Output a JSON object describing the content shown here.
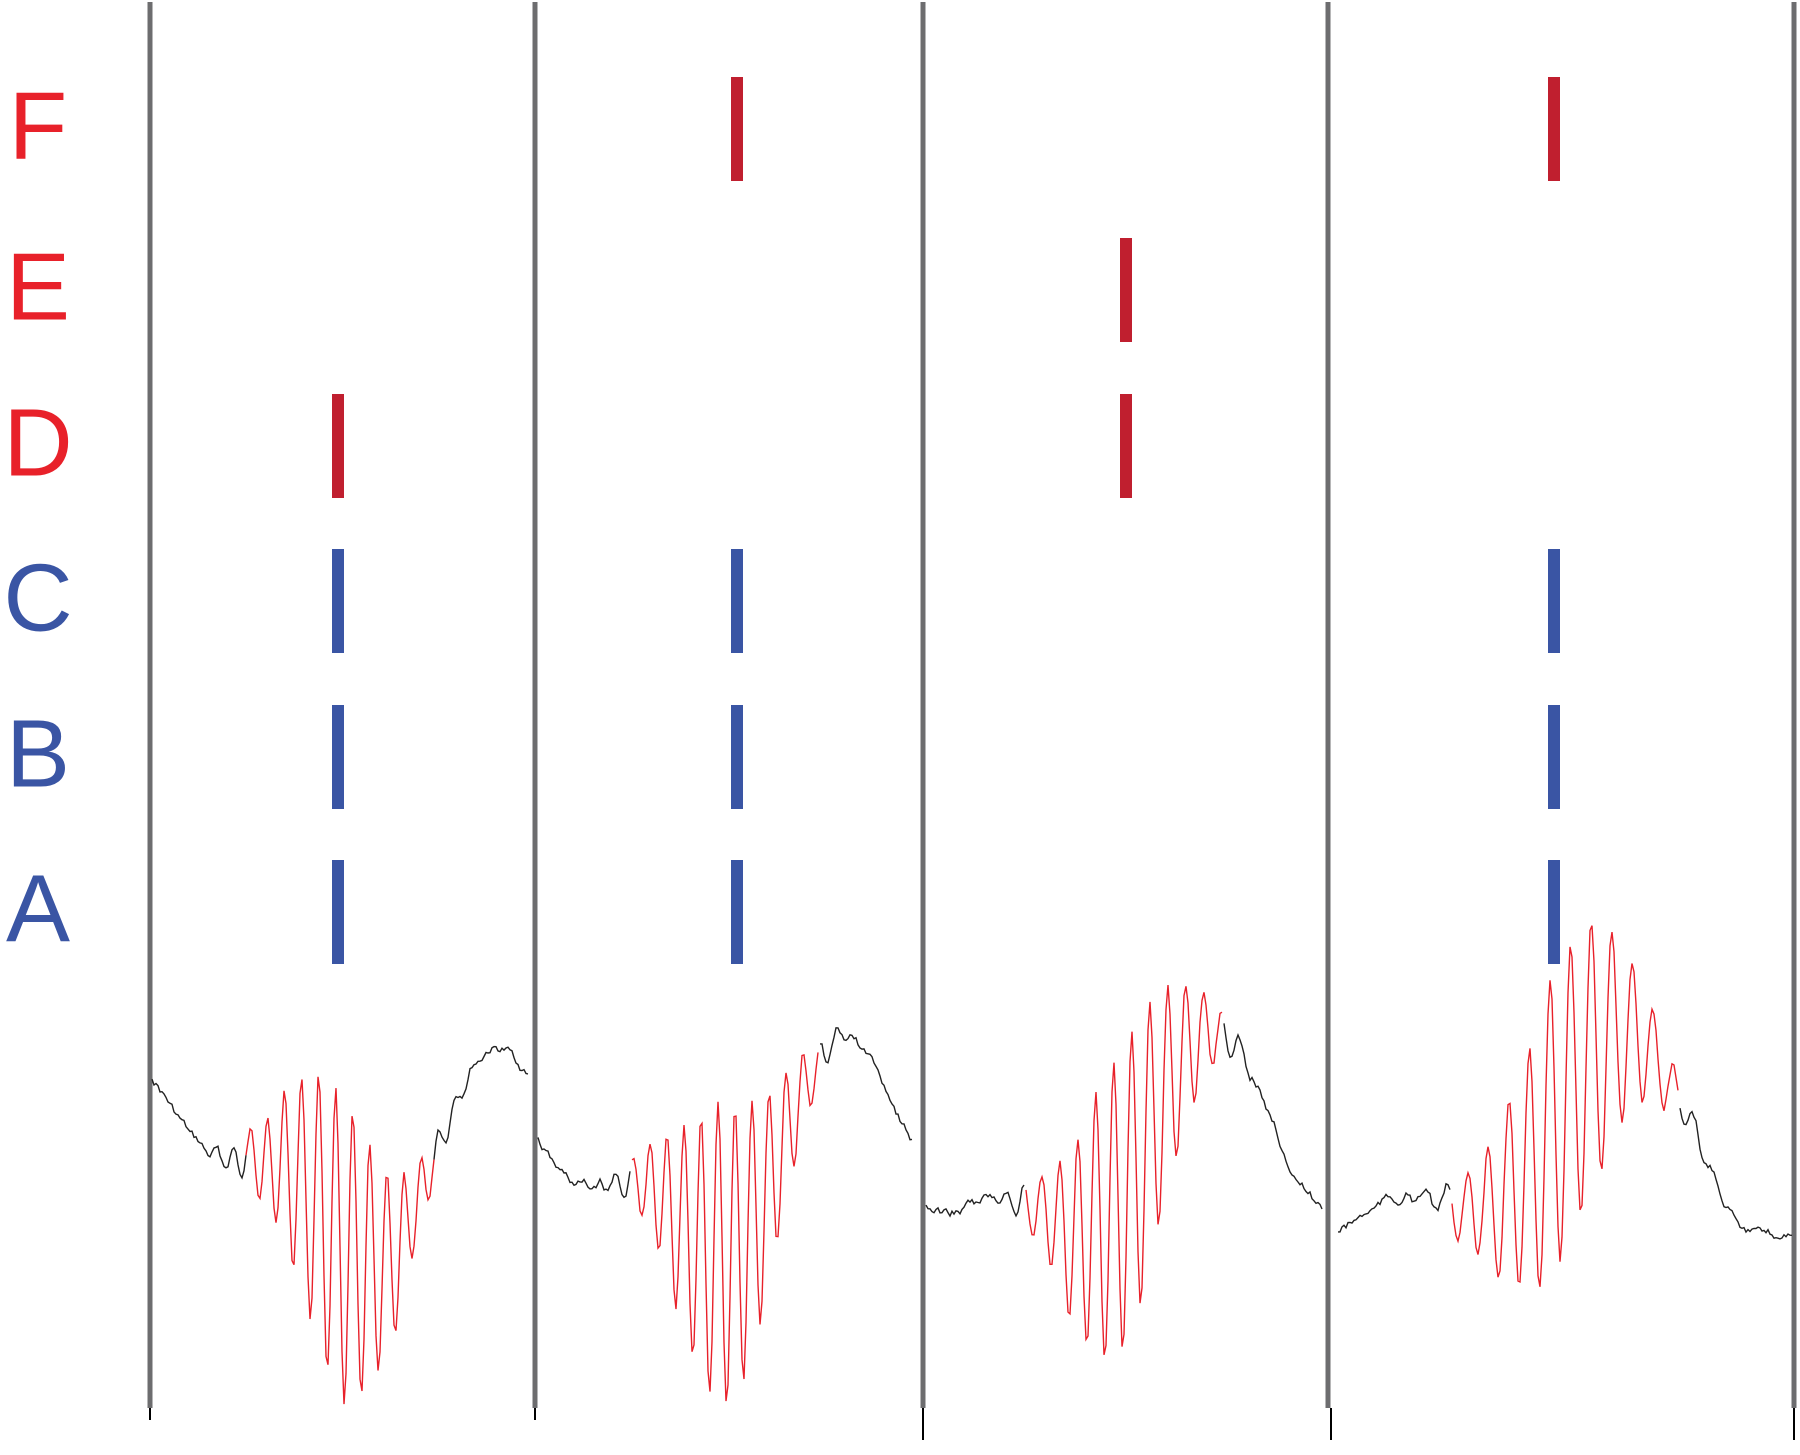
{
  "rows": [
    {
      "label": "F",
      "color": "#e8212a",
      "mark_color": "#c01f2f"
    },
    {
      "label": "E",
      "color": "#e8212a",
      "mark_color": "#c01f2f"
    },
    {
      "label": "D",
      "color": "#e8212a",
      "mark_color": "#c01f2f"
    },
    {
      "label": "C",
      "color": "#3a55a4",
      "mark_color": "#3a55a4"
    },
    {
      "label": "B",
      "color": "#3a55a4",
      "mark_color": "#3a55a4"
    },
    {
      "label": "A",
      "color": "#3a55a4",
      "mark_color": "#3a55a4"
    }
  ],
  "panels": [
    {
      "active": [
        false,
        false,
        true,
        true,
        true,
        true
      ]
    },
    {
      "active": [
        true,
        false,
        false,
        true,
        true,
        true
      ]
    },
    {
      "active": [
        false,
        true,
        true,
        false,
        false,
        false
      ]
    },
    {
      "active": [
        true,
        false,
        false,
        true,
        true,
        true
      ]
    }
  ]
}
